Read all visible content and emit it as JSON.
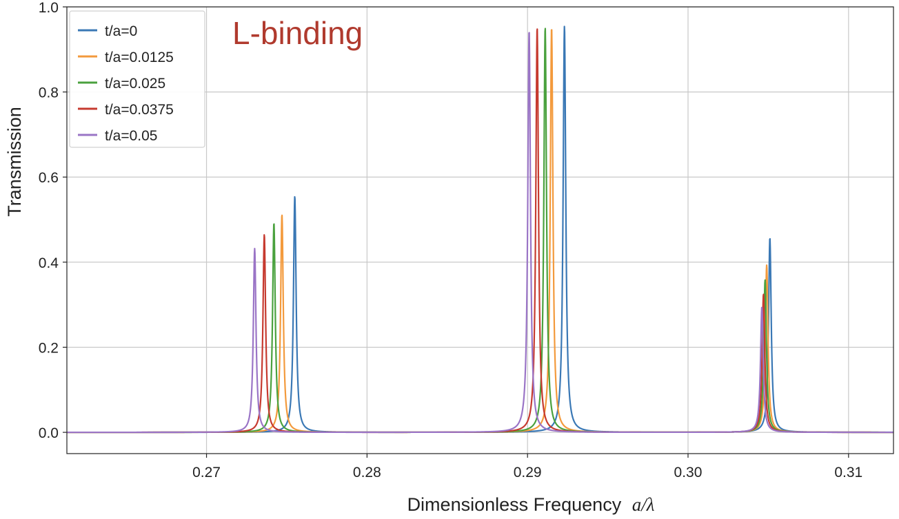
{
  "chart_data": {
    "type": "line",
    "title": "",
    "annotation": {
      "text": "L-binding",
      "color": "#b03a2e"
    },
    "xlabel": "Dimensionless Frequency",
    "xlabel_math": "a/λ",
    "ylabel": "Transmission",
    "xlim": [
      0.2613,
      0.3128
    ],
    "ylim": [
      -0.05,
      1.0
    ],
    "xticks": [
      0.27,
      0.28,
      0.29,
      0.3,
      0.31
    ],
    "xtick_labels": [
      "0.27",
      "0.28",
      "0.29",
      "0.30",
      "0.31"
    ],
    "yticks": [
      0.0,
      0.2,
      0.4,
      0.6,
      0.8,
      1.0
    ],
    "ytick_labels": [
      "0.0",
      "0.2",
      "0.4",
      "0.6",
      "0.8",
      "1.0"
    ],
    "grid": true,
    "legend_position": "top-left",
    "series": [
      {
        "name": "t/a=0",
        "color": "#3a78b5",
        "peaks": [
          {
            "x": 0.2755,
            "y": 0.555
          },
          {
            "x": 0.2923,
            "y": 0.955
          },
          {
            "x": 0.3051,
            "y": 0.457
          }
        ]
      },
      {
        "name": "t/a=0.0125",
        "color": "#f39a3c",
        "peaks": [
          {
            "x": 0.2747,
            "y": 0.512
          },
          {
            "x": 0.2915,
            "y": 0.952
          },
          {
            "x": 0.3049,
            "y": 0.393
          }
        ]
      },
      {
        "name": "t/a=0.025",
        "color": "#4aa13e",
        "peaks": [
          {
            "x": 0.2742,
            "y": 0.492
          },
          {
            "x": 0.2911,
            "y": 0.952
          },
          {
            "x": 0.3048,
            "y": 0.358
          }
        ]
      },
      {
        "name": "t/a=0.0375",
        "color": "#c63a2f",
        "peaks": [
          {
            "x": 0.2736,
            "y": 0.465
          },
          {
            "x": 0.2906,
            "y": 0.952
          },
          {
            "x": 0.3047,
            "y": 0.325
          }
        ]
      },
      {
        "name": "t/a=0.05",
        "color": "#9a74c6",
        "peaks": [
          {
            "x": 0.273,
            "y": 0.432
          },
          {
            "x": 0.2901,
            "y": 0.945
          },
          {
            "x": 0.3046,
            "y": 0.295
          }
        ]
      }
    ]
  }
}
